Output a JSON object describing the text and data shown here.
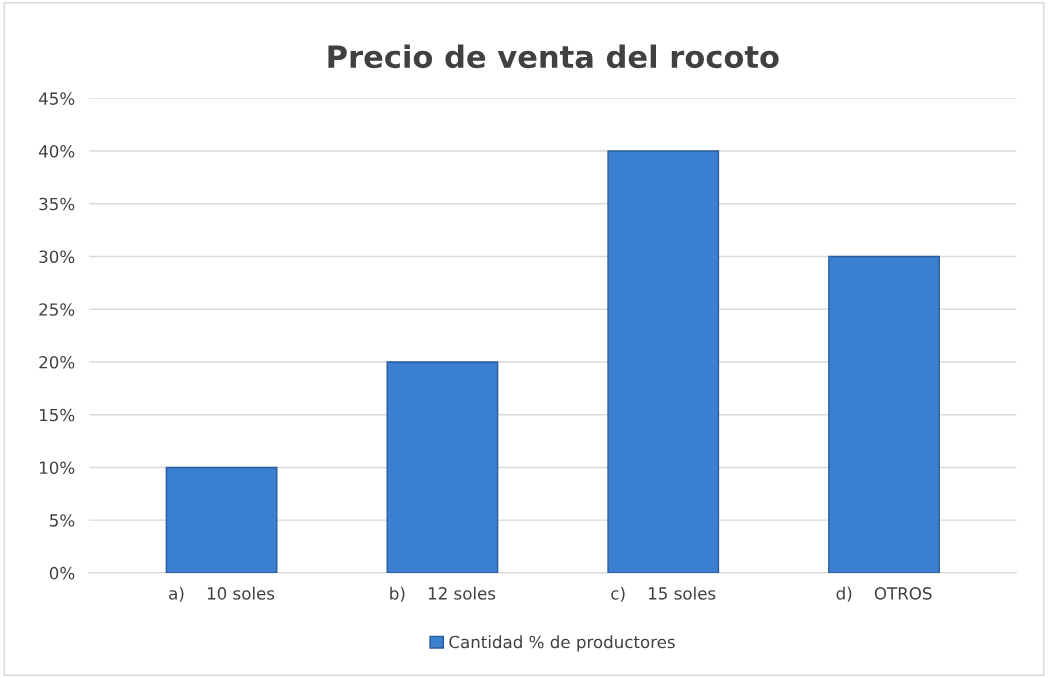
{
  "chart_data": {
    "type": "bar",
    "title": "Precio de venta del rocoto",
    "categories": [
      "a)    10 soles",
      "b)    12 soles",
      "c)    15 soles",
      "d)    OTROS"
    ],
    "series": [
      {
        "name": "Cantidad % de productores",
        "color": "#3a7fd0",
        "values": [
          10,
          20,
          40,
          30
        ]
      }
    ],
    "ylim": [
      0,
      45
    ],
    "yticks": [
      {
        "value": 0,
        "label": "0%"
      },
      {
        "value": 5,
        "label": "5%"
      },
      {
        "value": 10,
        "label": "10%"
      },
      {
        "value": 15,
        "label": "15%"
      },
      {
        "value": 20,
        "label": "20%"
      },
      {
        "value": 25,
        "label": "25%"
      },
      {
        "value": 30,
        "label": "30%"
      },
      {
        "value": 35,
        "label": "35%"
      },
      {
        "value": 40,
        "label": "40%"
      },
      {
        "value": 45,
        "label": "45%"
      }
    ],
    "grid": "y",
    "legend": "bottom"
  }
}
